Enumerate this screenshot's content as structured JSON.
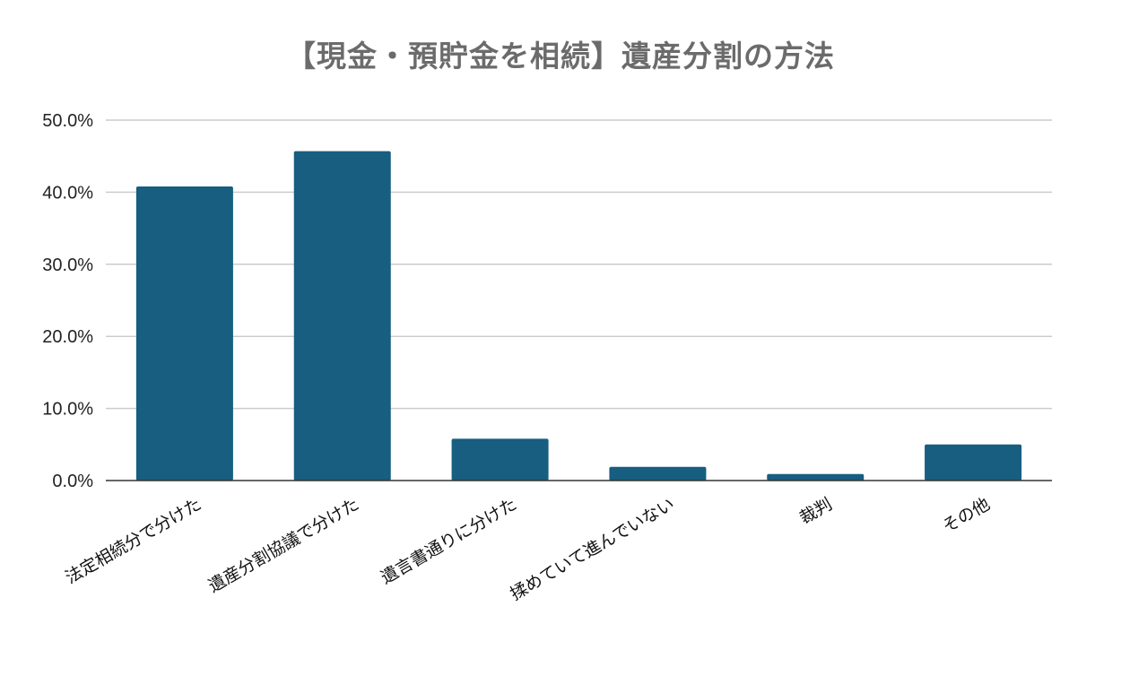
{
  "chart_data": {
    "type": "bar",
    "title": "【現金・預貯金を相続】遺産分割の方法",
    "xlabel": "",
    "ylabel": "",
    "ylim": [
      0,
      50
    ],
    "yticks": [
      "0.0%",
      "10.0%",
      "20.0%",
      "30.0%",
      "40.0%",
      "50.0%"
    ],
    "categories": [
      "法定相続分で分けた",
      "遺産分割協議で分けた",
      "遺言書通りに分けた",
      "揉めていて進んでいない",
      "裁判",
      "その他"
    ],
    "values": [
      40.8,
      45.7,
      5.8,
      1.9,
      0.9,
      5.0
    ],
    "grid": true,
    "legend": "none",
    "colors": {
      "bar": "#175e80",
      "grid": "#cccccc",
      "axis": "#333333",
      "title": "#6b6b6b"
    }
  }
}
